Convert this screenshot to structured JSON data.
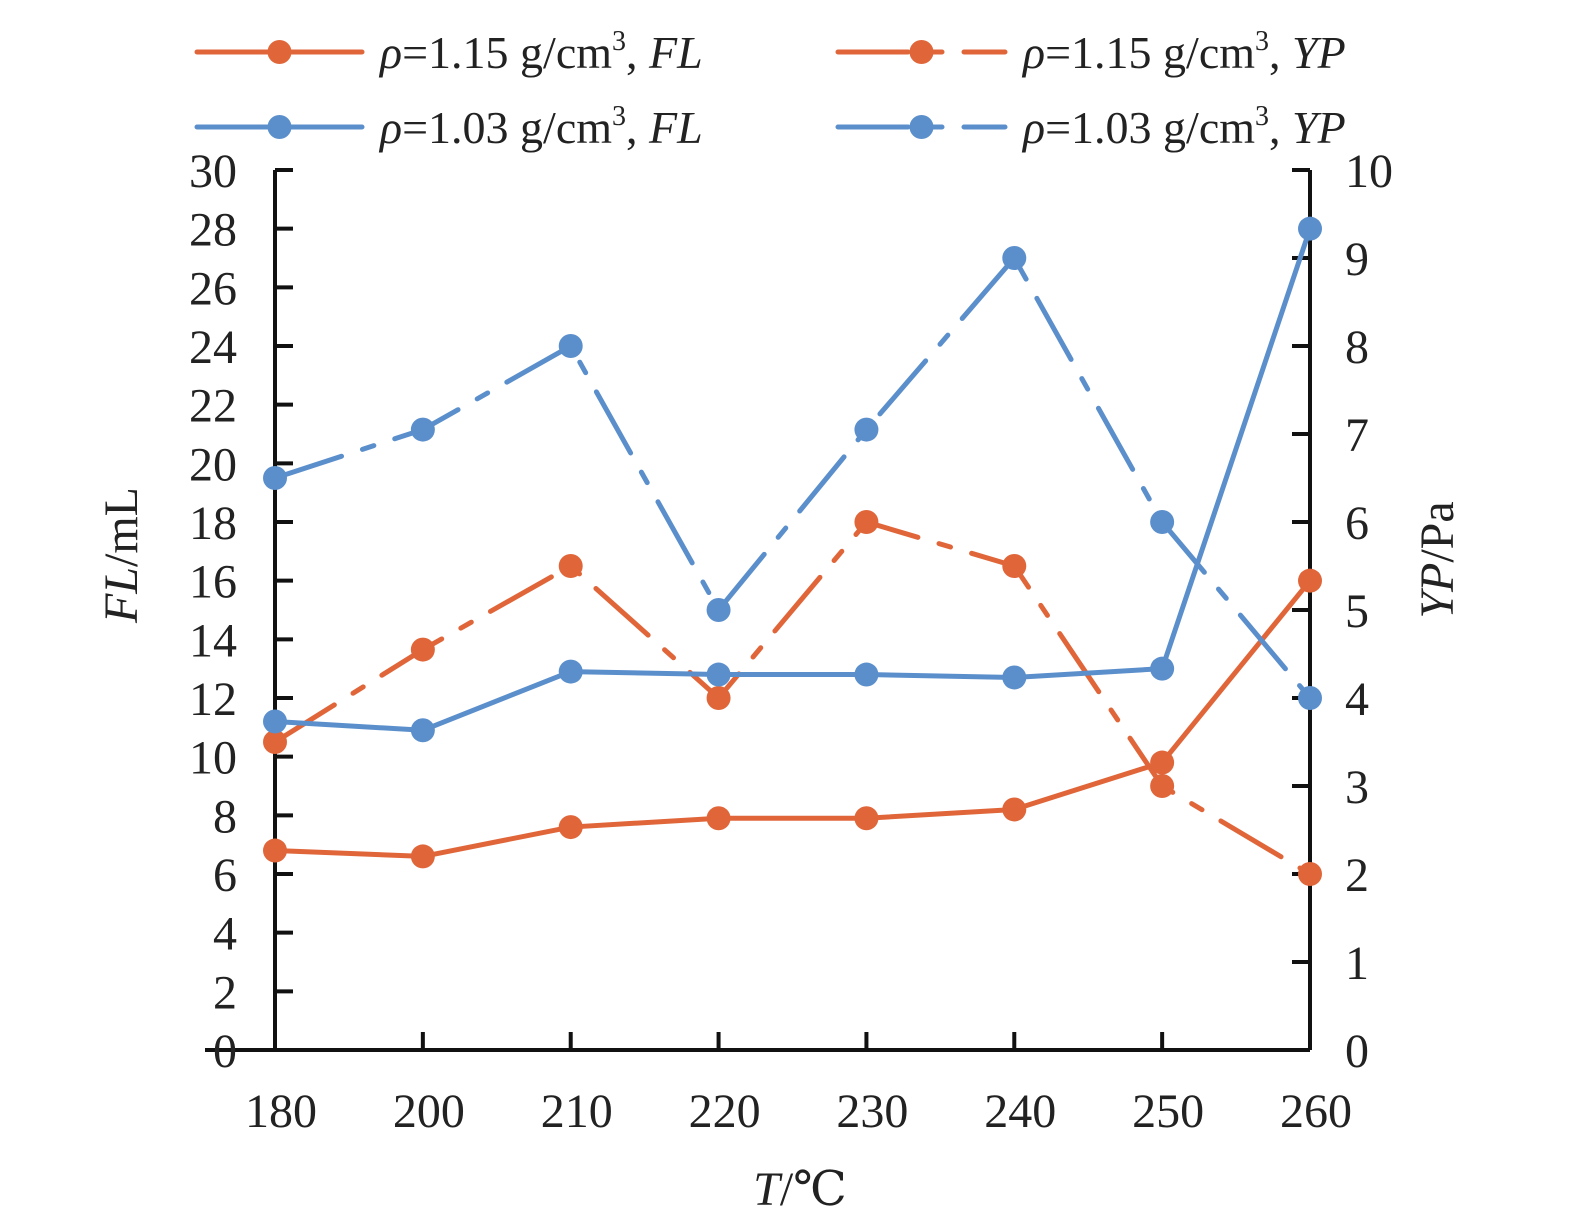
{
  "chart_data": {
    "type": "line",
    "categories": [
      "180",
      "200",
      "210",
      "220",
      "230",
      "240",
      "250",
      "260"
    ],
    "xlabel": {
      "var": "T",
      "unit": "/℃"
    },
    "y_left": {
      "var": "FL",
      "unit": "/mL",
      "lim": [
        0,
        30
      ],
      "ticks": [
        "0",
        "2",
        "4",
        "6",
        "8",
        "10",
        "12",
        "14",
        "16",
        "18",
        "20",
        "22",
        "24",
        "26",
        "28",
        "30"
      ]
    },
    "y_right": {
      "var": "YP",
      "unit": "/Pa",
      "lim": [
        0,
        10
      ],
      "ticks": [
        "0",
        "1",
        "2",
        "3",
        "4",
        "5",
        "6",
        "7",
        "8",
        "9",
        "10"
      ]
    },
    "legend": {
      "placement": "top"
    },
    "series": [
      {
        "name": {
          "rho": "ρ",
          "eq": "=1.15 g/cm",
          "sup": "3",
          "sep": ", ",
          "prop": "FL"
        },
        "axis": "left",
        "dashed": false,
        "color": "#E0663A",
        "values": [
          6.8,
          6.6,
          7.6,
          7.9,
          7.9,
          8.2,
          9.8,
          16.0
        ]
      },
      {
        "name": {
          "rho": "ρ",
          "eq": "=1.15 g/cm",
          "sup": "3",
          "sep": ", ",
          "prop": "YP"
        },
        "axis": "right",
        "dashed": true,
        "color": "#E0663A",
        "values": [
          3.5,
          4.55,
          5.5,
          4.0,
          6.0,
          5.5,
          3.0,
          2.0
        ]
      },
      {
        "name": {
          "rho": "ρ",
          "eq": "=1.03 g/cm",
          "sup": "3",
          "sep": ", ",
          "prop": "FL"
        },
        "axis": "left",
        "dashed": false,
        "color": "#5B8FCC",
        "values": [
          11.2,
          10.9,
          12.9,
          12.8,
          12.8,
          12.7,
          13.0,
          28.0
        ]
      },
      {
        "name": {
          "rho": "ρ",
          "eq": "=1.03 g/cm",
          "sup": "3",
          "sep": ", ",
          "prop": "YP"
        },
        "axis": "right",
        "dashed": true,
        "color": "#5B8FCC",
        "values": [
          6.5,
          7.05,
          8.0,
          5.0,
          7.05,
          9.0,
          6.0,
          4.0
        ]
      }
    ]
  }
}
